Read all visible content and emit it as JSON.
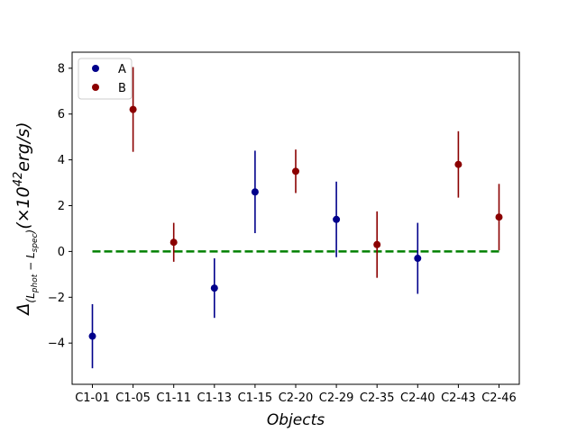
{
  "chart_data": {
    "type": "scatter",
    "title": "",
    "xlabel": "Objects",
    "ylabel_parts": {
      "delta": "Δ",
      "sub_open": "(L",
      "sub_phot": "phot",
      "sub_minus": " − L",
      "sub_spec": "spec",
      "sub_close": ")",
      "unit_open": "(×10",
      "unit_exp": "42",
      "unit_close": "erg/s)"
    },
    "categories": [
      "C1-01",
      "C1-05",
      "C1-11",
      "C1-13",
      "C1-15",
      "C2-20",
      "C2-29",
      "C2-35",
      "C2-40",
      "C2-43",
      "C2-46"
    ],
    "ylim": [
      -5.8,
      8.7
    ],
    "yticks": [
      -4,
      -2,
      0,
      2,
      4,
      6,
      8
    ],
    "ytick_labels": [
      "−4",
      "−2",
      "0",
      "2",
      "4",
      "6",
      "8"
    ],
    "grid": false,
    "legend_position": "top-left",
    "series": [
      {
        "name": "A",
        "color": "#00008b",
        "points": [
          {
            "category": "C1-01",
            "y": -3.7,
            "err": 1.4
          },
          {
            "category": "C1-13",
            "y": -1.6,
            "err": 1.3
          },
          {
            "category": "C1-15",
            "y": 2.6,
            "err": 1.8
          },
          {
            "category": "C2-29",
            "y": 1.4,
            "err": 1.65
          },
          {
            "category": "C2-40",
            "y": -0.3,
            "err": 1.55
          }
        ]
      },
      {
        "name": "B",
        "color": "#8b0000",
        "points": [
          {
            "category": "C1-05",
            "y": 6.2,
            "err": 1.85
          },
          {
            "category": "C1-11",
            "y": 0.4,
            "err": 0.85
          },
          {
            "category": "C2-20",
            "y": 3.5,
            "err": 0.95
          },
          {
            "category": "C2-35",
            "y": 0.3,
            "err": 1.45
          },
          {
            "category": "C2-43",
            "y": 3.8,
            "err": 1.45
          },
          {
            "category": "C2-46",
            "y": 1.5,
            "err": 1.45
          }
        ]
      }
    ],
    "reference_line": {
      "y": 0,
      "color": "#008000",
      "style": "dashed"
    }
  }
}
